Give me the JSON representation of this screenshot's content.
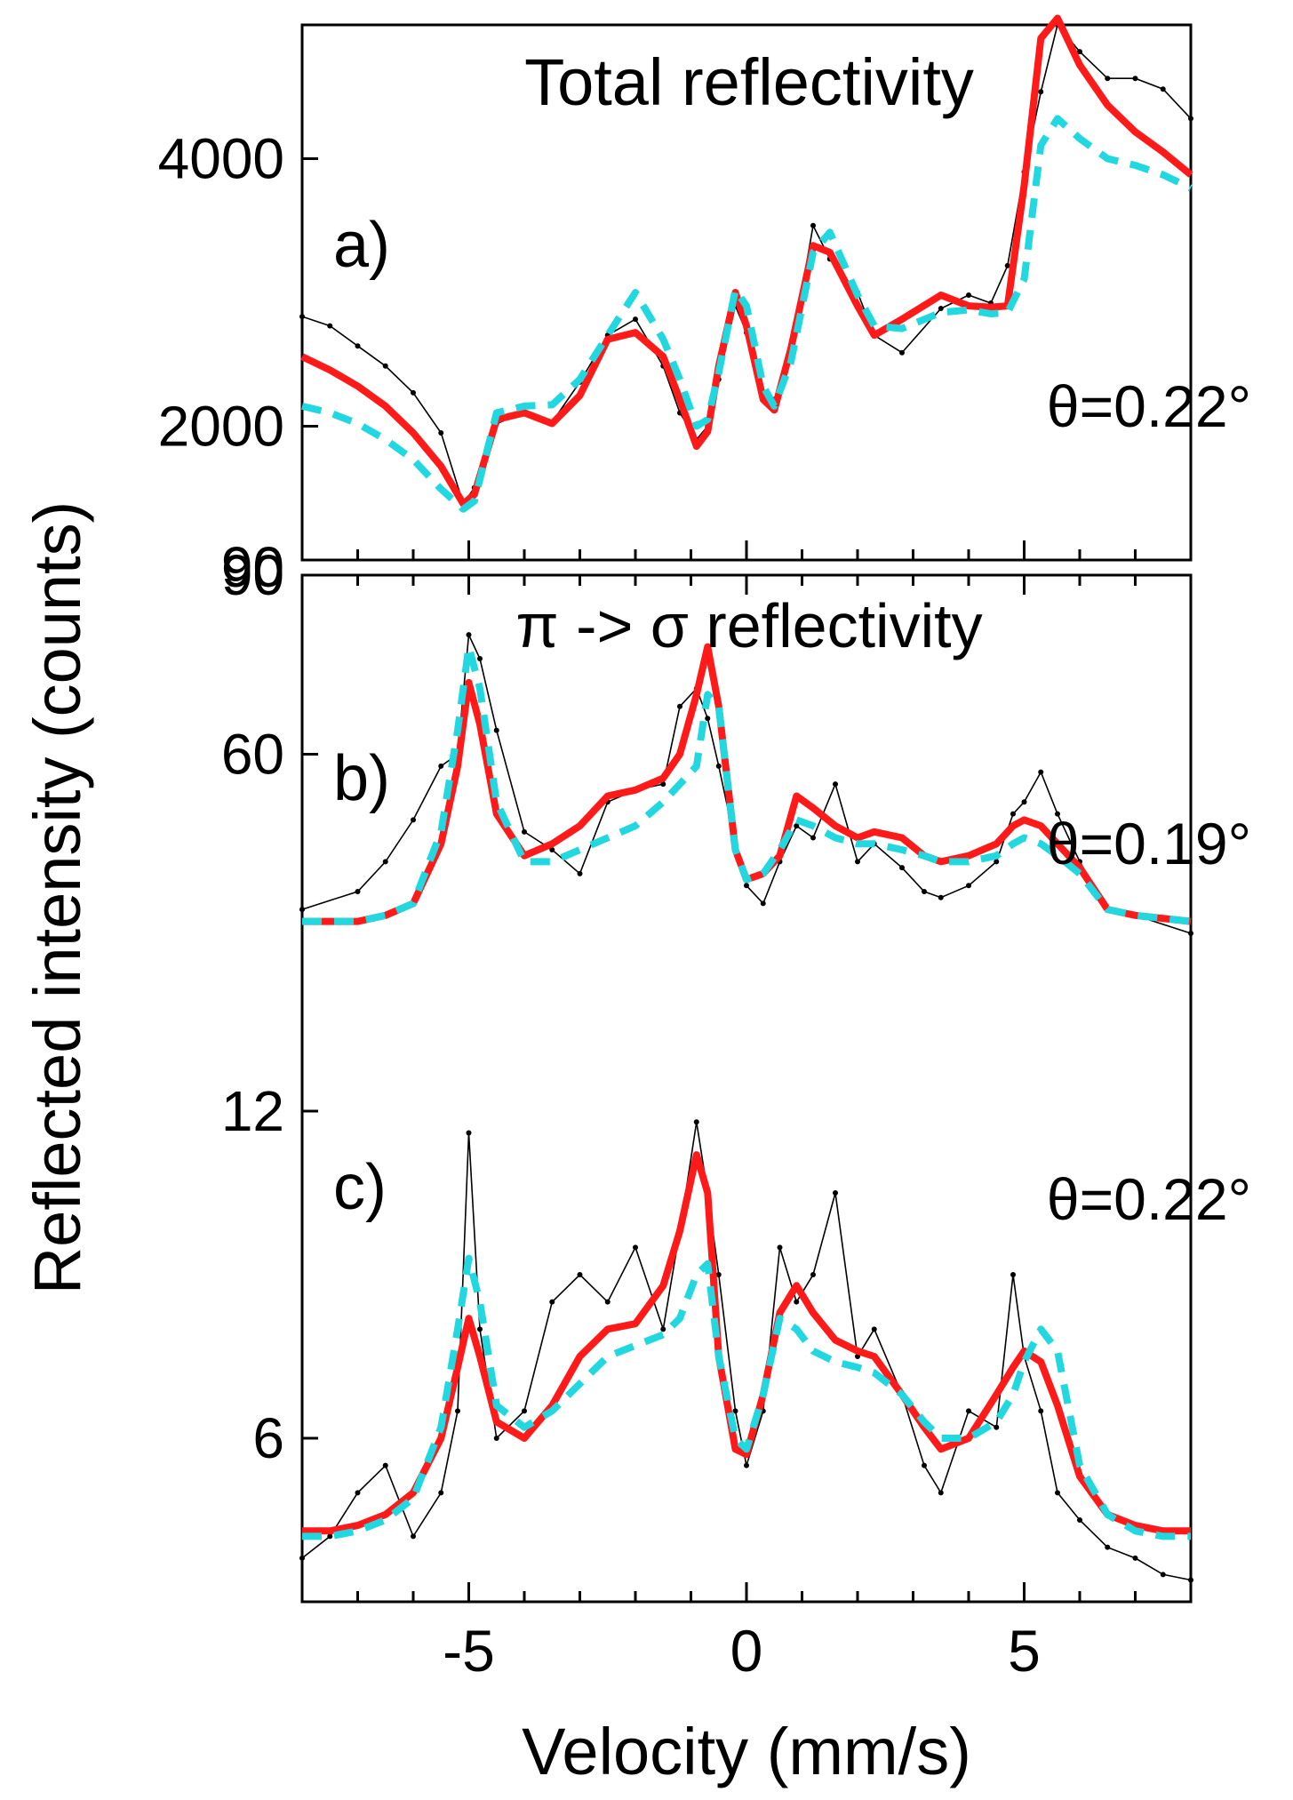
{
  "figure": {
    "ylabel": "Reflected intensity (counts)",
    "xlabel": "Velocity (mm/s)"
  },
  "chart_data": [
    {
      "type": "line",
      "panel": "a)",
      "title": "Total reflectivity",
      "annotation": "θ=0.22°",
      "xlim": [
        -8,
        8
      ],
      "ylim": [
        1000,
        5000
      ],
      "yticks": [
        2000,
        4000
      ],
      "ytick_labels": [
        "2000",
        "4000"
      ],
      "bottom_label": "90",
      "x": [
        -8,
        -7.5,
        -7,
        -6.5,
        -6,
        -5.5,
        -5.1,
        -4.9,
        -4.5,
        -4,
        -3.5,
        -3,
        -2.5,
        -2,
        -1.5,
        -1.2,
        -0.9,
        -0.7,
        -0.5,
        -0.2,
        0,
        0.3,
        0.5,
        0.8,
        1.2,
        1.5,
        2,
        2.3,
        2.8,
        3.5,
        4,
        4.4,
        4.7,
        5,
        5.3,
        5.6,
        6,
        6.5,
        7,
        7.5,
        8
      ],
      "series": [
        {
          "name": "data",
          "color": "#000000",
          "style": "points",
          "values": [
            2820,
            2750,
            2600,
            2450,
            2250,
            1950,
            1420,
            1540,
            2020,
            2100,
            2030,
            2330,
            2680,
            2800,
            2450,
            2100,
            1900,
            2000,
            2350,
            2900,
            2700,
            2250,
            2200,
            2550,
            3500,
            3250,
            3000,
            2680,
            2550,
            2880,
            2980,
            2920,
            3200,
            3900,
            4500,
            5000,
            4800,
            4600,
            4600,
            4520,
            4300
          ]
        },
        {
          "name": "fit 1",
          "color": "#ff1a1a",
          "style": "solid",
          "values": [
            2520,
            2420,
            2300,
            2150,
            1950,
            1700,
            1420,
            1490,
            2050,
            2100,
            2020,
            2230,
            2650,
            2700,
            2520,
            2200,
            1850,
            1960,
            2450,
            3000,
            2750,
            2200,
            2120,
            2580,
            3350,
            3300,
            2900,
            2680,
            2800,
            2980,
            2900,
            2890,
            2900,
            3800,
            4900,
            5050,
            4700,
            4400,
            4200,
            4050,
            3880
          ]
        },
        {
          "name": "fit 2",
          "color": "#22d8e0",
          "style": "dashed",
          "values": [
            2150,
            2100,
            2020,
            1900,
            1750,
            1530,
            1380,
            1440,
            2100,
            2150,
            2160,
            2350,
            2680,
            3000,
            2650,
            2350,
            2000,
            2050,
            2400,
            3020,
            2900,
            2300,
            2150,
            2480,
            3300,
            3450,
            2980,
            2750,
            2730,
            2850,
            2870,
            2840,
            2850,
            3100,
            4100,
            4300,
            4150,
            4000,
            3950,
            3880,
            3780
          ]
        }
      ]
    },
    {
      "type": "line",
      "panel": "b)",
      "title": "π -> σ  reflectivity",
      "annotation": "θ=0.19°",
      "xlim": [
        -8,
        8
      ],
      "ylim": [
        30,
        90
      ],
      "yticks": [
        60,
        90
      ],
      "ytick_labels": [
        "60",
        "90"
      ],
      "x": [
        -8,
        -7,
        -6.5,
        -6,
        -5.5,
        -5.2,
        -5,
        -4.8,
        -4.5,
        -4,
        -3.5,
        -3,
        -2.5,
        -2,
        -1.5,
        -1.2,
        -0.9,
        -0.7,
        -0.5,
        -0.2,
        0,
        0.3,
        0.6,
        0.9,
        1.2,
        1.6,
        2,
        2.3,
        2.8,
        3.2,
        3.5,
        4,
        4.5,
        4.8,
        5,
        5.3,
        5.6,
        6,
        6.5,
        7,
        8
      ],
      "series": [
        {
          "name": "data",
          "color": "#000000",
          "style": "points",
          "values": [
            34,
            37,
            42,
            49,
            58,
            60,
            80,
            76,
            64,
            47,
            44,
            40,
            52,
            54,
            55,
            68,
            71,
            66,
            58,
            45,
            38,
            35,
            42,
            48,
            46,
            55,
            42,
            45,
            41,
            37,
            36,
            38,
            42,
            50,
            52,
            57,
            50,
            42,
            34,
            33,
            30
          ]
        },
        {
          "name": "fit 1",
          "color": "#ff1a1a",
          "style": "solid",
          "values": [
            32,
            32,
            33,
            35,
            45,
            58,
            72,
            65,
            50,
            43,
            45,
            48,
            53,
            54,
            56,
            60,
            70,
            78,
            68,
            44,
            39,
            40,
            43,
            53,
            51,
            48,
            46,
            47,
            46,
            43,
            42,
            43,
            45,
            48,
            49,
            48,
            45,
            41,
            34,
            33,
            32
          ]
        },
        {
          "name": "fit 2",
          "color": "#22d8e0",
          "style": "dashed",
          "values": [
            32,
            32,
            33,
            35,
            47,
            64,
            78,
            71,
            52,
            42,
            42,
            44,
            46,
            48,
            52,
            55,
            58,
            70,
            68,
            44,
            39,
            40,
            44,
            49,
            48,
            46,
            45,
            45,
            44,
            43,
            42,
            42,
            43,
            45,
            46,
            45,
            43,
            40,
            34,
            33,
            32
          ]
        }
      ]
    },
    {
      "type": "line",
      "panel": "c)",
      "annotation": "θ=0.22°",
      "xlim": [
        -8,
        8
      ],
      "ylim": [
        3,
        12
      ],
      "yticks": [
        6,
        12
      ],
      "ytick_labels": [
        "6",
        "12"
      ],
      "x": [
        -8,
        -7.5,
        -7,
        -6.5,
        -6,
        -5.5,
        -5.2,
        -5,
        -4.8,
        -4.5,
        -4,
        -3.5,
        -3,
        -2.5,
        -2,
        -1.5,
        -1.2,
        -0.9,
        -0.7,
        -0.5,
        -0.2,
        0,
        0.3,
        0.6,
        0.9,
        1.2,
        1.6,
        2,
        2.3,
        2.8,
        3.2,
        3.5,
        4,
        4.5,
        4.8,
        5,
        5.3,
        5.6,
        6,
        6.5,
        7,
        7.5,
        8
      ],
      "series": [
        {
          "name": "data",
          "color": "#000000",
          "style": "points",
          "values": [
            3.8,
            4.2,
            5.0,
            5.5,
            4.2,
            5.0,
            6.5,
            11.6,
            8.0,
            6.0,
            6.5,
            8.5,
            9.0,
            8.5,
            9.5,
            8.0,
            9.8,
            11.8,
            10.5,
            9.0,
            6.5,
            5.5,
            6.5,
            9.5,
            8.5,
            9.0,
            10.5,
            7.5,
            8.0,
            6.8,
            5.5,
            5.0,
            6.5,
            6.2,
            9.0,
            7.5,
            6.5,
            5.0,
            4.5,
            4.0,
            3.8,
            3.5,
            3.4
          ]
        },
        {
          "name": "fit 1",
          "color": "#ff1a1a",
          "style": "solid",
          "values": [
            4.3,
            4.3,
            4.4,
            4.6,
            5.0,
            6.0,
            7.3,
            8.2,
            7.5,
            6.3,
            6.0,
            6.6,
            7.5,
            8.0,
            8.1,
            8.8,
            9.8,
            11.2,
            10.5,
            7.5,
            5.8,
            5.7,
            6.8,
            8.3,
            8.8,
            8.3,
            7.8,
            7.6,
            7.5,
            6.8,
            6.2,
            5.8,
            6.0,
            6.8,
            7.3,
            7.6,
            7.4,
            6.6,
            5.3,
            4.6,
            4.4,
            4.3,
            4.3
          ]
        },
        {
          "name": "fit 2",
          "color": "#22d8e0",
          "style": "dashed",
          "values": [
            4.2,
            4.2,
            4.3,
            4.5,
            4.9,
            6.2,
            8.0,
            9.3,
            8.5,
            6.6,
            6.2,
            6.5,
            7.0,
            7.5,
            7.7,
            7.9,
            8.2,
            9.0,
            9.2,
            7.5,
            6.0,
            5.8,
            6.8,
            8.2,
            8.0,
            7.6,
            7.4,
            7.3,
            7.2,
            6.8,
            6.3,
            6.0,
            6.0,
            6.3,
            6.8,
            7.4,
            8.0,
            7.6,
            5.5,
            4.6,
            4.3,
            4.2,
            4.2
          ]
        }
      ]
    }
  ],
  "xaxis": {
    "ticks": [
      -5,
      0,
      5
    ],
    "tick_labels": [
      "-5",
      "0",
      "5"
    ],
    "minor_step": 1
  }
}
